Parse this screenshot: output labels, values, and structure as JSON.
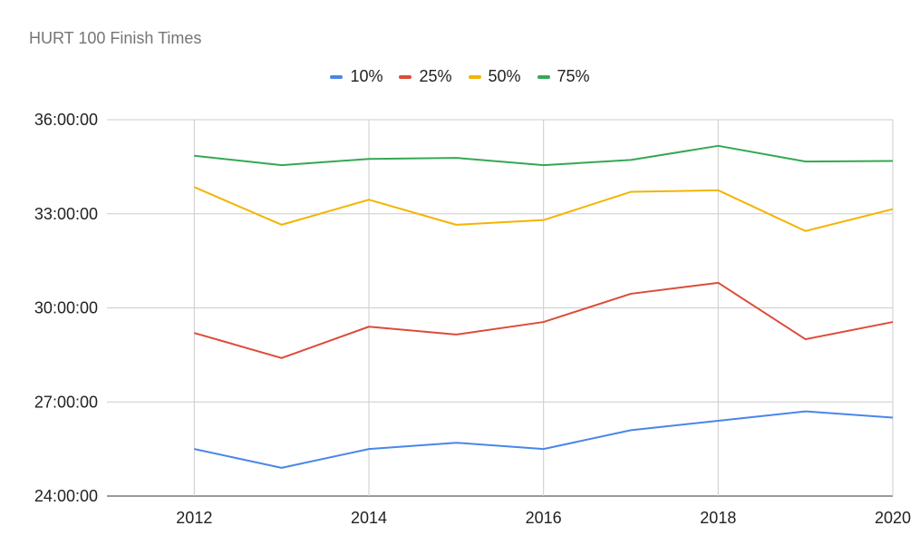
{
  "chart_data": {
    "type": "line",
    "title": "HURT 100 Finish Times",
    "xlabel": "",
    "ylabel": "",
    "x": [
      2012,
      2013,
      2014,
      2015,
      2016,
      2017,
      2018,
      2019,
      2020
    ],
    "xlim": [
      2011,
      2020
    ],
    "x_ticks": [
      "2012",
      "2014",
      "2016",
      "2018",
      "2020"
    ],
    "ylim": [
      "24:00:00",
      "36:00:00"
    ],
    "y_ticks": [
      "24:00:00",
      "27:00:00",
      "30:00:00",
      "33:00:00",
      "36:00:00"
    ],
    "grid": true,
    "legend_position": "top-center",
    "series": [
      {
        "name": "10%",
        "color": "#4a86e8",
        "values": [
          "25:30:00",
          "24:54:00",
          "25:30:00",
          "25:42:00",
          "25:30:00",
          "26:06:00",
          "26:24:00",
          "26:42:00",
          "26:30:00"
        ]
      },
      {
        "name": "25%",
        "color": "#dd4b39",
        "values": [
          "29:12:00",
          "28:24:00",
          "29:24:00",
          "29:09:00",
          "29:33:00",
          "30:27:00",
          "30:48:00",
          "29:00:00",
          "29:33:00"
        ]
      },
      {
        "name": "50%",
        "color": "#f4b400",
        "values": [
          "33:51:00",
          "32:39:00",
          "33:27:00",
          "32:39:00",
          "32:48:00",
          "33:42:00",
          "33:45:00",
          "32:27:00",
          "33:09:00"
        ]
      },
      {
        "name": "75%",
        "color": "#34a853",
        "values": [
          "34:51:00",
          "34:33:00",
          "34:45:00",
          "34:47:00",
          "34:33:00",
          "34:43:00",
          "35:10:00",
          "34:40:00",
          "34:41:00"
        ]
      }
    ]
  }
}
